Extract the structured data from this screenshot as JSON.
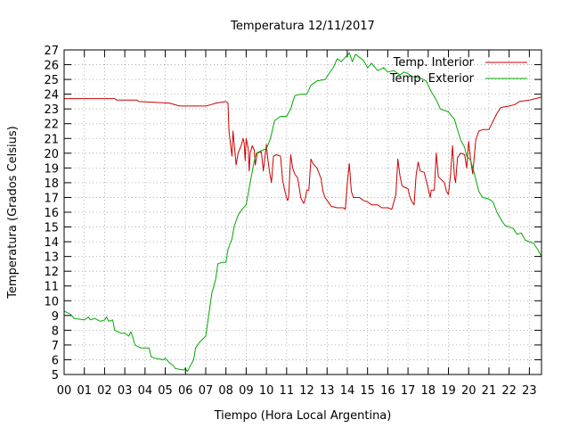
{
  "chart_data": {
    "type": "line",
    "title": "Temperatura 12/11/2017",
    "xlabel": "Tiempo (Hora Local Argentina)",
    "ylabel": "Temperatura (Grados Celsius)",
    "xlim": [
      0,
      23.6
    ],
    "ylim": [
      5,
      27
    ],
    "x_ticks": [
      {
        "v": 0,
        "label": "00"
      },
      {
        "v": 1,
        "label": "01"
      },
      {
        "v": 2,
        "label": "02"
      },
      {
        "v": 3,
        "label": "03"
      },
      {
        "v": 4,
        "label": "04"
      },
      {
        "v": 5,
        "label": "05"
      },
      {
        "v": 6,
        "label": "06"
      },
      {
        "v": 7,
        "label": "07"
      },
      {
        "v": 8,
        "label": "08"
      },
      {
        "v": 9,
        "label": "09"
      },
      {
        "v": 10,
        "label": "10"
      },
      {
        "v": 11,
        "label": "11"
      },
      {
        "v": 12,
        "label": "12"
      },
      {
        "v": 13,
        "label": "13"
      },
      {
        "v": 14,
        "label": "14"
      },
      {
        "v": 15,
        "label": "15"
      },
      {
        "v": 16,
        "label": "16"
      },
      {
        "v": 17,
        "label": "17"
      },
      {
        "v": 18,
        "label": "18"
      },
      {
        "v": 19,
        "label": "19"
      },
      {
        "v": 20,
        "label": "20"
      },
      {
        "v": 21,
        "label": "21"
      },
      {
        "v": 22,
        "label": "22"
      },
      {
        "v": 23,
        "label": "23"
      }
    ],
    "y_ticks": [
      5,
      6,
      7,
      8,
      9,
      10,
      11,
      12,
      13,
      14,
      15,
      16,
      17,
      18,
      19,
      20,
      21,
      22,
      23,
      24,
      25,
      26,
      27
    ],
    "grid": true,
    "legend_position": "top-right",
    "series": [
      {
        "name": "Temp. Interior",
        "color": "#cc0000",
        "points": [
          [
            0,
            23.7
          ],
          [
            1,
            23.7
          ],
          [
            2,
            23.7
          ],
          [
            2.5,
            23.7
          ],
          [
            2.6,
            23.6
          ],
          [
            3.6,
            23.6
          ],
          [
            3.7,
            23.5
          ],
          [
            5.2,
            23.4
          ],
          [
            5.7,
            23.2
          ],
          [
            7,
            23.2
          ],
          [
            7.3,
            23.3
          ],
          [
            7.5,
            23.4
          ],
          [
            8,
            23.5
          ],
          [
            8.1,
            23.4
          ],
          [
            8.15,
            21.5
          ],
          [
            8.25,
            20.3
          ],
          [
            8.3,
            19.8
          ],
          [
            8.35,
            21.5
          ],
          [
            8.45,
            20.0
          ],
          [
            8.5,
            19.2
          ],
          [
            8.6,
            20.0
          ],
          [
            8.75,
            20.5
          ],
          [
            8.85,
            21.0
          ],
          [
            8.9,
            20.7
          ],
          [
            8.95,
            19.5
          ],
          [
            9.0,
            21.0
          ],
          [
            9.1,
            20.3
          ],
          [
            9.15,
            18.8
          ],
          [
            9.2,
            20.0
          ],
          [
            9.3,
            20.5
          ],
          [
            9.4,
            20.2
          ],
          [
            9.45,
            19.2
          ],
          [
            9.55,
            20.0
          ],
          [
            9.75,
            20.1
          ],
          [
            9.85,
            18.8
          ],
          [
            9.95,
            20.0
          ],
          [
            10.0,
            20.6
          ],
          [
            10.05,
            19.8
          ],
          [
            10.15,
            18.8
          ],
          [
            10.25,
            18.0
          ],
          [
            10.35,
            19.8
          ],
          [
            10.5,
            19.9
          ],
          [
            10.7,
            19.8
          ],
          [
            10.8,
            18.2
          ],
          [
            10.9,
            17.5
          ],
          [
            11.0,
            17.0
          ],
          [
            11.05,
            16.8
          ],
          [
            11.1,
            17.0
          ],
          [
            11.2,
            19.9
          ],
          [
            11.3,
            19.0
          ],
          [
            11.4,
            18.6
          ],
          [
            11.55,
            18.3
          ],
          [
            11.7,
            17.0
          ],
          [
            11.8,
            16.7
          ],
          [
            11.85,
            16.6
          ],
          [
            11.9,
            16.8
          ],
          [
            12.0,
            17.5
          ],
          [
            12.1,
            17.5
          ],
          [
            12.2,
            19.6
          ],
          [
            12.3,
            19.3
          ],
          [
            12.5,
            19.0
          ],
          [
            12.7,
            18.3
          ],
          [
            12.8,
            17.4
          ],
          [
            12.9,
            17.0
          ],
          [
            13.0,
            16.8
          ],
          [
            13.2,
            16.4
          ],
          [
            13.5,
            16.3
          ],
          [
            13.8,
            16.3
          ],
          [
            13.9,
            16.2
          ],
          [
            14.0,
            18.0
          ],
          [
            14.1,
            19.3
          ],
          [
            14.2,
            17.4
          ],
          [
            14.3,
            17.0
          ],
          [
            14.6,
            17.0
          ],
          [
            14.8,
            16.8
          ],
          [
            15.0,
            16.7
          ],
          [
            15.2,
            16.5
          ],
          [
            15.5,
            16.5
          ],
          [
            15.7,
            16.3
          ],
          [
            16.0,
            16.3
          ],
          [
            16.2,
            16.2
          ],
          [
            16.4,
            17.2
          ],
          [
            16.5,
            19.6
          ],
          [
            16.6,
            18.5
          ],
          [
            16.7,
            17.8
          ],
          [
            16.8,
            17.7
          ],
          [
            17.0,
            17.6
          ],
          [
            17.1,
            17.0
          ],
          [
            17.2,
            16.7
          ],
          [
            17.3,
            16.5
          ],
          [
            17.4,
            18.5
          ],
          [
            17.5,
            19.4
          ],
          [
            17.6,
            18.8
          ],
          [
            17.8,
            18.7
          ],
          [
            18.0,
            17.6
          ],
          [
            18.1,
            17.0
          ],
          [
            18.15,
            17.5
          ],
          [
            18.3,
            17.5
          ],
          [
            18.4,
            20.0
          ],
          [
            18.5,
            18.4
          ],
          [
            18.8,
            18.0
          ],
          [
            18.9,
            17.4
          ],
          [
            19.0,
            17.2
          ],
          [
            19.1,
            18.5
          ],
          [
            19.2,
            20.5
          ],
          [
            19.3,
            18.4
          ],
          [
            19.35,
            18.0
          ],
          [
            19.45,
            19.7
          ],
          [
            19.6,
            20.0
          ],
          [
            19.8,
            19.9
          ],
          [
            19.9,
            19.0
          ],
          [
            20.0,
            20.8
          ],
          [
            20.1,
            19.5
          ],
          [
            20.2,
            18.6
          ],
          [
            20.35,
            20.9
          ],
          [
            20.5,
            21.5
          ],
          [
            20.7,
            21.6
          ],
          [
            21.0,
            21.6
          ],
          [
            21.4,
            22.7
          ],
          [
            21.6,
            23.1
          ],
          [
            22.0,
            23.2
          ],
          [
            22.3,
            23.3
          ],
          [
            22.5,
            23.5
          ],
          [
            23.0,
            23.6
          ],
          [
            23.3,
            23.7
          ],
          [
            23.6,
            23.8
          ]
        ]
      },
      {
        "name": "Temp. Exterior",
        "color": "#00aa00",
        "points": [
          [
            0,
            9.3
          ],
          [
            0.3,
            9.1
          ],
          [
            0.5,
            8.8
          ],
          [
            1.0,
            8.7
          ],
          [
            1.2,
            8.9
          ],
          [
            1.3,
            8.7
          ],
          [
            1.5,
            8.8
          ],
          [
            1.8,
            8.6
          ],
          [
            2.0,
            8.7
          ],
          [
            2.1,
            8.9
          ],
          [
            2.2,
            8.6
          ],
          [
            2.4,
            8.7
          ],
          [
            2.5,
            8.0
          ],
          [
            2.8,
            7.8
          ],
          [
            3.0,
            7.8
          ],
          [
            3.2,
            7.6
          ],
          [
            3.3,
            7.9
          ],
          [
            3.4,
            7.5
          ],
          [
            3.5,
            7.0
          ],
          [
            3.8,
            6.8
          ],
          [
            4.2,
            6.8
          ],
          [
            4.3,
            6.2
          ],
          [
            4.5,
            6.1
          ],
          [
            4.9,
            6.0
          ],
          [
            5.0,
            6.1
          ],
          [
            5.2,
            5.8
          ],
          [
            5.4,
            5.6
          ],
          [
            5.5,
            5.4
          ],
          [
            5.9,
            5.3
          ],
          [
            6.0,
            5.4
          ],
          [
            6.1,
            5.2
          ],
          [
            6.2,
            5.5
          ],
          [
            6.4,
            6.0
          ],
          [
            6.5,
            6.8
          ],
          [
            6.7,
            7.2
          ],
          [
            7.0,
            7.6
          ],
          [
            7.2,
            9.5
          ],
          [
            7.3,
            10.5
          ],
          [
            7.5,
            11.5
          ],
          [
            7.6,
            12.5
          ],
          [
            7.8,
            12.6
          ],
          [
            8.0,
            12.6
          ],
          [
            8.1,
            13.5
          ],
          [
            8.3,
            14.2
          ],
          [
            8.4,
            15.0
          ],
          [
            8.6,
            15.8
          ],
          [
            8.8,
            16.2
          ],
          [
            9.0,
            16.5
          ],
          [
            9.2,
            18.0
          ],
          [
            9.4,
            19.5
          ],
          [
            9.5,
            20.0
          ],
          [
            9.8,
            20.2
          ],
          [
            10.0,
            20.3
          ],
          [
            10.2,
            21.0
          ],
          [
            10.4,
            22.2
          ],
          [
            10.7,
            22.5
          ],
          [
            11.0,
            22.5
          ],
          [
            11.2,
            23.0
          ],
          [
            11.4,
            23.9
          ],
          [
            11.7,
            24.0
          ],
          [
            12.0,
            24.0
          ],
          [
            12.2,
            24.6
          ],
          [
            12.5,
            24.9
          ],
          [
            12.9,
            25.0
          ],
          [
            13.1,
            25.4
          ],
          [
            13.3,
            25.8
          ],
          [
            13.5,
            26.4
          ],
          [
            13.7,
            26.2
          ],
          [
            13.9,
            26.5
          ],
          [
            14.1,
            26.8
          ],
          [
            14.25,
            26.2
          ],
          [
            14.4,
            26.7
          ],
          [
            14.6,
            26.5
          ],
          [
            14.8,
            26.3
          ],
          [
            15.0,
            25.8
          ],
          [
            15.2,
            26.1
          ],
          [
            15.5,
            25.6
          ],
          [
            15.8,
            25.8
          ],
          [
            16.0,
            25.5
          ],
          [
            16.3,
            25.6
          ],
          [
            16.6,
            25.3
          ],
          [
            16.8,
            25.5
          ],
          [
            17.0,
            25.4
          ],
          [
            17.2,
            25.2
          ],
          [
            17.6,
            25.1
          ],
          [
            17.9,
            24.9
          ],
          [
            18.1,
            24.3
          ],
          [
            18.4,
            23.6
          ],
          [
            18.6,
            23.0
          ],
          [
            19.0,
            22.8
          ],
          [
            19.3,
            22.3
          ],
          [
            19.4,
            21.8
          ],
          [
            19.6,
            20.9
          ],
          [
            19.8,
            20.4
          ],
          [
            19.9,
            19.8
          ],
          [
            20.1,
            19.5
          ],
          [
            20.3,
            18.5
          ],
          [
            20.5,
            17.4
          ],
          [
            20.7,
            17.0
          ],
          [
            21.0,
            16.9
          ],
          [
            21.2,
            16.7
          ],
          [
            21.4,
            16.0
          ],
          [
            21.6,
            15.5
          ],
          [
            21.8,
            15.1
          ],
          [
            22.0,
            15.0
          ],
          [
            22.2,
            14.9
          ],
          [
            22.4,
            14.5
          ],
          [
            22.6,
            14.6
          ],
          [
            22.8,
            14.1
          ],
          [
            23.0,
            14.0
          ],
          [
            23.2,
            13.9
          ],
          [
            23.4,
            13.5
          ],
          [
            23.6,
            13.0
          ]
        ]
      }
    ]
  }
}
